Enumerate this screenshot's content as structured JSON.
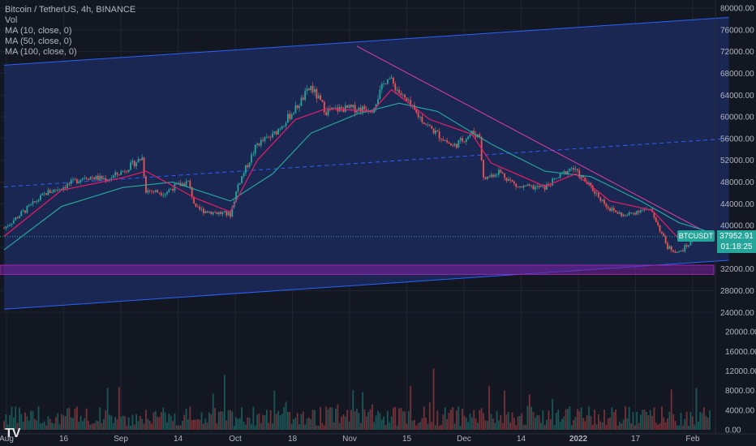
{
  "legend": {
    "title": "Bitcoin / TetherUS, 4h, BINANCE",
    "vol": "Vol",
    "ma10": "MA (10, close, 0)",
    "ma50": "MA (50, close, 0)",
    "ma100": "MA (100, close, 0)"
  },
  "price_tag": {
    "symbol": "BTCUSDT",
    "price": "37952.91",
    "countdown": "01:18:25"
  },
  "logo": "TV",
  "colors": {
    "background": "#131722",
    "up": "#26a69a",
    "down": "#ef5350",
    "ma10": "#e91e63",
    "ma50": "#26a69a",
    "channel_fill": "#1c2a5c",
    "channel_line": "#2962ff",
    "trendline": "#e040a0",
    "support_zone": "#7b1fa2"
  },
  "chart_data": {
    "type": "candlestick",
    "price_ticks": [
      "80000.00",
      "76000.00",
      "72000.00",
      "68000.00",
      "64000.00",
      "60000.00",
      "56000.00",
      "52000.00",
      "48000.00",
      "44000.00",
      "40000.00",
      "36000.00",
      "32000.00",
      "28000.00",
      "24000.00"
    ],
    "volume_ticks": [
      "20000.00",
      "16000.00",
      "12000.00",
      "8000.00",
      "4000.00",
      "0.00"
    ],
    "x_ticks": [
      "Aug",
      "16",
      "Sep",
      "14",
      "Oct",
      "18",
      "Nov",
      "15",
      "Dec",
      "14",
      "2022",
      "17",
      "Feb"
    ],
    "price_range": [
      21800,
      81500
    ],
    "volume_range": [
      0,
      21500
    ],
    "last_price": 37952.91,
    "close_path": [
      [
        "Aug 1",
        39500
      ],
      [
        "Aug 6",
        42500
      ],
      [
        "Aug 12",
        46000
      ],
      [
        "Aug 16",
        47000
      ],
      [
        "Aug 22",
        49000
      ],
      [
        "Aug 28",
        48500
      ],
      [
        "Sep 1",
        50000
      ],
      [
        "Sep 6",
        52500
      ],
      [
        "Sep 7",
        46500
      ],
      [
        "Sep 12",
        46000
      ],
      [
        "Sep 14",
        47000
      ],
      [
        "Sep 18",
        48000
      ],
      [
        "Sep 20",
        43000
      ],
      [
        "Sep 24",
        42500
      ],
      [
        "Sep 29",
        42000
      ],
      [
        "Oct 1",
        47500
      ],
      [
        "Oct 6",
        55000
      ],
      [
        "Oct 10",
        56500
      ],
      [
        "Oct 16",
        61500
      ],
      [
        "Oct 20",
        65500
      ],
      [
        "Oct 24",
        61000
      ],
      [
        "Oct 28",
        61500
      ],
      [
        "Nov 1",
        61500
      ],
      [
        "Nov 5",
        61500
      ],
      [
        "Nov 9",
        67500
      ],
      [
        "Nov 12",
        64500
      ],
      [
        "Nov 16",
        61000
      ],
      [
        "Nov 20",
        58000
      ],
      [
        "Nov 26",
        54500
      ],
      [
        "Dec 1",
        57000
      ],
      [
        "Dec 3",
        56500
      ],
      [
        "Dec 4",
        48500
      ],
      [
        "Dec 8",
        50000
      ],
      [
        "Dec 13",
        47000
      ],
      [
        "Dec 20",
        47000
      ],
      [
        "Dec 27",
        50700
      ],
      [
        "Jan 1",
        47000
      ],
      [
        "Jan 6",
        43000
      ],
      [
        "Jan 10",
        41700
      ],
      [
        "Jan 14",
        43000
      ],
      [
        "Jan 17",
        42500
      ],
      [
        "Jan 21",
        36000
      ],
      [
        "Jan 24",
        35000
      ],
      [
        "Jan 28",
        37500
      ],
      [
        "Feb 1",
        37952.91
      ]
    ],
    "ma10_path": [
      [
        "Aug 1",
        38000
      ],
      [
        "Aug 16",
        46500
      ],
      [
        "Sep 1",
        48800
      ],
      [
        "Sep 7",
        50000
      ],
      [
        "Sep 20",
        45000
      ],
      [
        "Sep 29",
        42500
      ],
      [
        "Oct 6",
        52000
      ],
      [
        "Oct 16",
        59500
      ],
      [
        "Oct 24",
        61500
      ],
      [
        "Nov 5",
        61000
      ],
      [
        "Nov 10",
        65000
      ],
      [
        "Nov 20",
        59500
      ],
      [
        "Dec 1",
        56800
      ],
      [
        "Dec 6",
        51500
      ],
      [
        "Dec 20",
        47200
      ],
      [
        "Dec 28",
        49500
      ],
      [
        "Jan 6",
        44500
      ],
      [
        "Jan 17",
        42800
      ],
      [
        "Jan 24",
        37500
      ],
      [
        "Feb 1",
        37200
      ]
    ],
    "ma50_path": [
      [
        "Aug 1",
        35500
      ],
      [
        "Aug 16",
        43500
      ],
      [
        "Sep 1",
        47000
      ],
      [
        "Sep 14",
        48000
      ],
      [
        "Sep 29",
        44500
      ],
      [
        "Oct 10",
        49500
      ],
      [
        "Oct 20",
        57000
      ],
      [
        "Nov 1",
        60500
      ],
      [
        "Nov 12",
        62500
      ],
      [
        "Nov 22",
        61000
      ],
      [
        "Dec 6",
        55000
      ],
      [
        "Dec 20",
        50000
      ],
      [
        "Jan 1",
        49000
      ],
      [
        "Jan 14",
        44500
      ],
      [
        "Jan 24",
        40500
      ],
      [
        "Feb 1",
        38800
      ]
    ],
    "channel": {
      "upper": [
        [
          "Aug 1",
          69500
        ],
        [
          "Feb 6",
          78300
        ]
      ],
      "lower": [
        [
          "Aug 1",
          24600
        ],
        [
          "Feb 6",
          33600
        ]
      ],
      "mid": [
        [
          "Aug 1",
          47100
        ],
        [
          "Feb 6",
          56000
        ]
      ]
    },
    "descending_trendline": [
      [
        "Nov 1",
        73000
      ],
      [
        "Jan 31",
        38800
      ]
    ],
    "support_zone": [
      31000,
      32700
    ],
    "grid": true,
    "legend_position": "top-left"
  }
}
